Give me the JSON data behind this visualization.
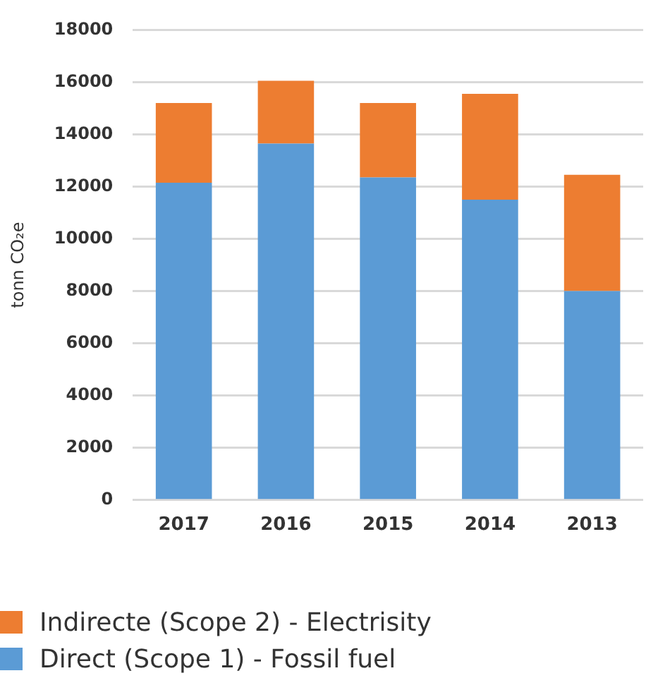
{
  "chart_data": {
    "type": "bar",
    "stacked": true,
    "ylabel": "tonn CO₂e",
    "categories": [
      "2017",
      "2016",
      "2015",
      "2014",
      "2013"
    ],
    "series": [
      {
        "name": "Direct (Scope 1) - Fossil fuel",
        "color": "#5b9bd5",
        "values": [
          12150,
          13650,
          12350,
          11500,
          8000
        ]
      },
      {
        "name": "Indirecte (Scope 2) - Electrisity",
        "color": "#ed7d31",
        "values": [
          3050,
          2400,
          2850,
          4050,
          4450
        ]
      }
    ],
    "ylim": [
      0,
      18000
    ],
    "yticks": [
      0,
      2000,
      4000,
      6000,
      8000,
      10000,
      12000,
      14000,
      16000,
      18000
    ],
    "grid": "y",
    "legend": "bottom"
  }
}
